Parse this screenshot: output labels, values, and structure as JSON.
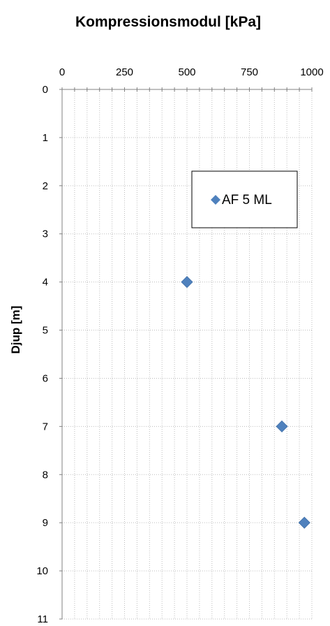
{
  "chart_data": {
    "type": "scatter",
    "title": "Kompressionsmodul [kPa]",
    "xlabel": "",
    "ylabel": "Djup [m]",
    "xlim": [
      0,
      1000
    ],
    "ylim": [
      0,
      11
    ],
    "y_inverted": true,
    "x_axis_position": "top",
    "x_ticks": [
      0,
      250,
      500,
      750,
      1000
    ],
    "y_ticks": [
      0,
      1,
      2,
      3,
      4,
      5,
      6,
      7,
      8,
      9,
      10,
      11
    ],
    "x_minor_step": 50,
    "grid": true,
    "legend_position": "right",
    "series": [
      {
        "name": "AF 5 ML",
        "marker": "diamond",
        "color": "#4F81BD",
        "points": [
          {
            "x": 500,
            "y": 4
          },
          {
            "x": 880,
            "y": 7
          },
          {
            "x": 970,
            "y": 9
          }
        ]
      }
    ]
  }
}
